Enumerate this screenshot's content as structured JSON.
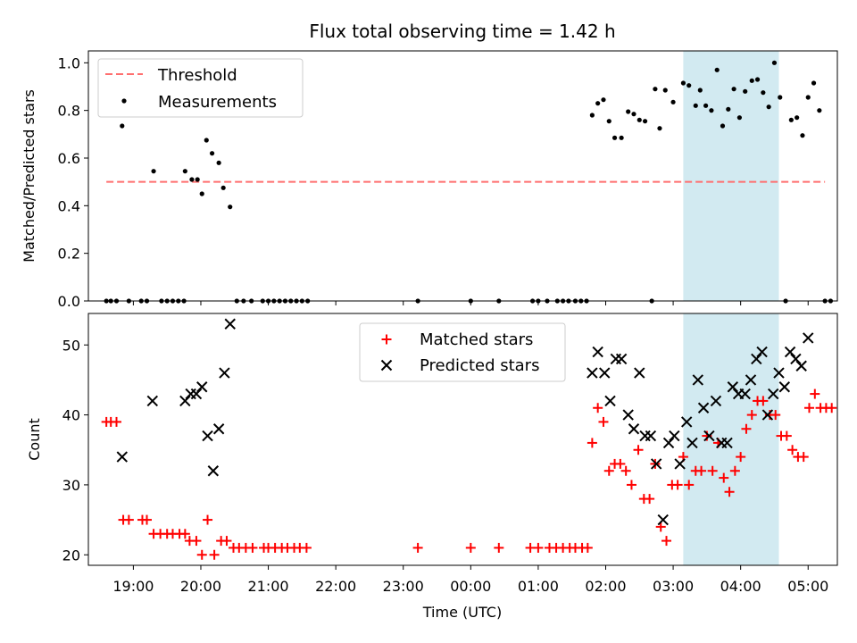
{
  "figure": {
    "title": "Flux total observing time = 1.42 h",
    "xlabel": "Time (UTC)",
    "highlight_span": [
      "03:09",
      "04:34"
    ],
    "highlight_color": "#add8e6",
    "x_ticks": [
      "19:00",
      "20:00",
      "21:00",
      "22:00",
      "23:00",
      "00:00",
      "01:00",
      "02:00",
      "03:00",
      "04:00",
      "05:00"
    ]
  },
  "chart_data": [
    {
      "type": "scatter",
      "ylabel": "Matched/Predicted stars",
      "ylim": [
        0,
        1.05
      ],
      "y_ticks": [
        "0.0",
        "0.2",
        "0.4",
        "0.6",
        "0.8",
        "1.0"
      ],
      "legend_position": "top-left",
      "threshold": {
        "name": "Threshold",
        "value": 0.5,
        "x_range": [
          "18:36",
          "05:15"
        ],
        "color": "#ff6f6f"
      },
      "series": [
        {
          "name": "Measurements",
          "color": "#000000",
          "points": [
            [
              "18:36",
              0
            ],
            [
              "18:40",
              0
            ],
            [
              "18:45",
              0
            ],
            [
              "18:50",
              0.735
            ],
            [
              "18:56",
              0
            ],
            [
              "19:07",
              0
            ],
            [
              "19:12",
              0
            ],
            [
              "19:18",
              0.545
            ],
            [
              "19:25",
              0
            ],
            [
              "19:30",
              0
            ],
            [
              "19:35",
              0
            ],
            [
              "19:40",
              0
            ],
            [
              "19:45",
              0
            ],
            [
              "19:46",
              0.545
            ],
            [
              "19:52",
              0.51
            ],
            [
              "19:57",
              0.51
            ],
            [
              "20:01",
              0.45
            ],
            [
              "20:05",
              0.675
            ],
            [
              "20:10",
              0.62
            ],
            [
              "20:16",
              0.58
            ],
            [
              "20:20",
              0.475
            ],
            [
              "20:26",
              0.395
            ],
            [
              "20:32",
              0
            ],
            [
              "20:38",
              0
            ],
            [
              "20:45",
              0
            ],
            [
              "20:55",
              0
            ],
            [
              "21:00",
              0
            ],
            [
              "21:05",
              0
            ],
            [
              "21:10",
              0
            ],
            [
              "21:15",
              0
            ],
            [
              "21:20",
              0
            ],
            [
              "21:25",
              0
            ],
            [
              "21:30",
              0
            ],
            [
              "21:35",
              0
            ],
            [
              "23:13",
              0
            ],
            [
              "00:00",
              0
            ],
            [
              "00:25",
              0
            ],
            [
              "00:55",
              0
            ],
            [
              "01:00",
              0
            ],
            [
              "01:08",
              0
            ],
            [
              "01:17",
              0
            ],
            [
              "01:22",
              0
            ],
            [
              "01:27",
              0
            ],
            [
              "01:33",
              0
            ],
            [
              "01:38",
              0
            ],
            [
              "01:43",
              0
            ],
            [
              "01:48",
              0.78
            ],
            [
              "01:53",
              0.83
            ],
            [
              "01:58",
              0.845
            ],
            [
              "02:03",
              0.755
            ],
            [
              "02:08",
              0.685
            ],
            [
              "02:14",
              0.685
            ],
            [
              "02:20",
              0.795
            ],
            [
              "02:25",
              0.785
            ],
            [
              "02:30",
              0.76
            ],
            [
              "02:35",
              0.755
            ],
            [
              "02:41",
              0
            ],
            [
              "02:44",
              0.89
            ],
            [
              "02:48",
              0.725
            ],
            [
              "02:53",
              0.885
            ],
            [
              "03:00",
              0.835
            ],
            [
              "03:09",
              0.915
            ],
            [
              "03:14",
              0.905
            ],
            [
              "03:20",
              0.82
            ],
            [
              "03:24",
              0.885
            ],
            [
              "03:29",
              0.82
            ],
            [
              "03:34",
              0.8
            ],
            [
              "03:39",
              0.97
            ],
            [
              "03:44",
              0.735
            ],
            [
              "03:49",
              0.805
            ],
            [
              "03:54",
              0.89
            ],
            [
              "03:59",
              0.77
            ],
            [
              "04:04",
              0.88
            ],
            [
              "04:10",
              0.925
            ],
            [
              "04:15",
              0.93
            ],
            [
              "04:20",
              0.875
            ],
            [
              "04:25",
              0.815
            ],
            [
              "04:30",
              1.0
            ],
            [
              "04:35",
              0.855
            ],
            [
              "04:40",
              0
            ],
            [
              "04:45",
              0.76
            ],
            [
              "04:50",
              0.77
            ],
            [
              "04:55",
              0.695
            ],
            [
              "05:00",
              0.855
            ],
            [
              "05:05",
              0.915
            ],
            [
              "05:10",
              0.8
            ],
            [
              "05:15",
              0
            ],
            [
              "05:20",
              0
            ]
          ]
        }
      ]
    },
    {
      "type": "scatter",
      "ylabel": "Count",
      "ylim": [
        18.5,
        54.5
      ],
      "y_ticks": [
        "20",
        "30",
        "40",
        "50"
      ],
      "legend_position": "top-center",
      "series": [
        {
          "name": "Matched stars",
          "marker": "+",
          "color": "#ff0000",
          "points": [
            [
              "18:36",
              39
            ],
            [
              "18:40",
              39
            ],
            [
              "18:45",
              39
            ],
            [
              "18:51",
              25
            ],
            [
              "18:56",
              25
            ],
            [
              "19:08",
              25
            ],
            [
              "19:12",
              25
            ],
            [
              "19:18",
              23
            ],
            [
              "19:24",
              23
            ],
            [
              "19:30",
              23
            ],
            [
              "19:35",
              23
            ],
            [
              "19:41",
              23
            ],
            [
              "19:46",
              23
            ],
            [
              "19:50",
              22
            ],
            [
              "19:56",
              22
            ],
            [
              "20:01",
              20
            ],
            [
              "20:06",
              25
            ],
            [
              "20:12",
              20
            ],
            [
              "20:18",
              22
            ],
            [
              "20:23",
              22
            ],
            [
              "20:29",
              21
            ],
            [
              "20:34",
              21
            ],
            [
              "20:40",
              21
            ],
            [
              "20:46",
              21
            ],
            [
              "20:56",
              21
            ],
            [
              "21:00",
              21
            ],
            [
              "21:06",
              21
            ],
            [
              "21:12",
              21
            ],
            [
              "21:17",
              21
            ],
            [
              "21:23",
              21
            ],
            [
              "21:28",
              21
            ],
            [
              "21:34",
              21
            ],
            [
              "23:13",
              21
            ],
            [
              "00:00",
              21
            ],
            [
              "00:25",
              21
            ],
            [
              "00:53",
              21
            ],
            [
              "01:00",
              21
            ],
            [
              "01:10",
              21
            ],
            [
              "01:16",
              21
            ],
            [
              "01:22",
              21
            ],
            [
              "01:28",
              21
            ],
            [
              "01:33",
              21
            ],
            [
              "01:39",
              21
            ],
            [
              "01:44",
              21
            ],
            [
              "01:48",
              36
            ],
            [
              "01:53",
              41
            ],
            [
              "01:58",
              39
            ],
            [
              "02:03",
              32
            ],
            [
              "02:08",
              33
            ],
            [
              "02:13",
              33
            ],
            [
              "02:18",
              32
            ],
            [
              "02:23",
              30
            ],
            [
              "02:29",
              35
            ],
            [
              "02:34",
              28
            ],
            [
              "02:39",
              28
            ],
            [
              "02:44",
              33
            ],
            [
              "02:49",
              24
            ],
            [
              "02:54",
              22
            ],
            [
              "02:59",
              30
            ],
            [
              "03:04",
              30
            ],
            [
              "03:09",
              34
            ],
            [
              "03:14",
              30
            ],
            [
              "03:20",
              32
            ],
            [
              "03:25",
              32
            ],
            [
              "03:30",
              37
            ],
            [
              "03:35",
              32
            ],
            [
              "03:40",
              36
            ],
            [
              "03:45",
              31
            ],
            [
              "03:50",
              29
            ],
            [
              "03:55",
              32
            ],
            [
              "04:00",
              34
            ],
            [
              "04:05",
              38
            ],
            [
              "04:10",
              40
            ],
            [
              "04:15",
              42
            ],
            [
              "04:20",
              42
            ],
            [
              "04:26",
              40
            ],
            [
              "04:31",
              40
            ],
            [
              "04:36",
              37
            ],
            [
              "04:41",
              37
            ],
            [
              "04:46",
              35
            ],
            [
              "04:51",
              34
            ],
            [
              "04:56",
              34
            ],
            [
              "05:01",
              41
            ],
            [
              "05:06",
              43
            ],
            [
              "05:11",
              41
            ],
            [
              "05:16",
              41
            ],
            [
              "05:21",
              41
            ]
          ]
        },
        {
          "name": "Predicted stars",
          "marker": "x",
          "color": "#000000",
          "points": [
            [
              "18:50",
              34
            ],
            [
              "19:17",
              42
            ],
            [
              "19:46",
              42
            ],
            [
              "19:51",
              43
            ],
            [
              "19:56",
              43
            ],
            [
              "20:01",
              44
            ],
            [
              "20:06",
              37
            ],
            [
              "20:11",
              32
            ],
            [
              "20:16",
              38
            ],
            [
              "20:21",
              46
            ],
            [
              "20:26",
              53
            ],
            [
              "01:48",
              46
            ],
            [
              "01:53",
              49
            ],
            [
              "01:59",
              46
            ],
            [
              "02:04",
              42
            ],
            [
              "02:09",
              48
            ],
            [
              "02:14",
              48
            ],
            [
              "02:20",
              40
            ],
            [
              "02:25",
              38
            ],
            [
              "02:30",
              46
            ],
            [
              "02:35",
              37
            ],
            [
              "02:40",
              37
            ],
            [
              "02:45",
              33
            ],
            [
              "02:51",
              25
            ],
            [
              "02:56",
              36
            ],
            [
              "03:01",
              37
            ],
            [
              "03:06",
              33
            ],
            [
              "03:12",
              39
            ],
            [
              "03:17",
              36
            ],
            [
              "03:22",
              45
            ],
            [
              "03:27",
              41
            ],
            [
              "03:32",
              37
            ],
            [
              "03:38",
              42
            ],
            [
              "03:43",
              36
            ],
            [
              "03:48",
              36
            ],
            [
              "03:53",
              44
            ],
            [
              "03:58",
              43
            ],
            [
              "04:04",
              43
            ],
            [
              "04:09",
              45
            ],
            [
              "04:14",
              48
            ],
            [
              "04:19",
              49
            ],
            [
              "04:24",
              40
            ],
            [
              "04:29",
              43
            ],
            [
              "04:34",
              46
            ],
            [
              "04:39",
              44
            ],
            [
              "04:44",
              49
            ],
            [
              "04:49",
              48
            ],
            [
              "04:54",
              47
            ],
            [
              "05:00",
              51
            ]
          ]
        }
      ]
    }
  ]
}
